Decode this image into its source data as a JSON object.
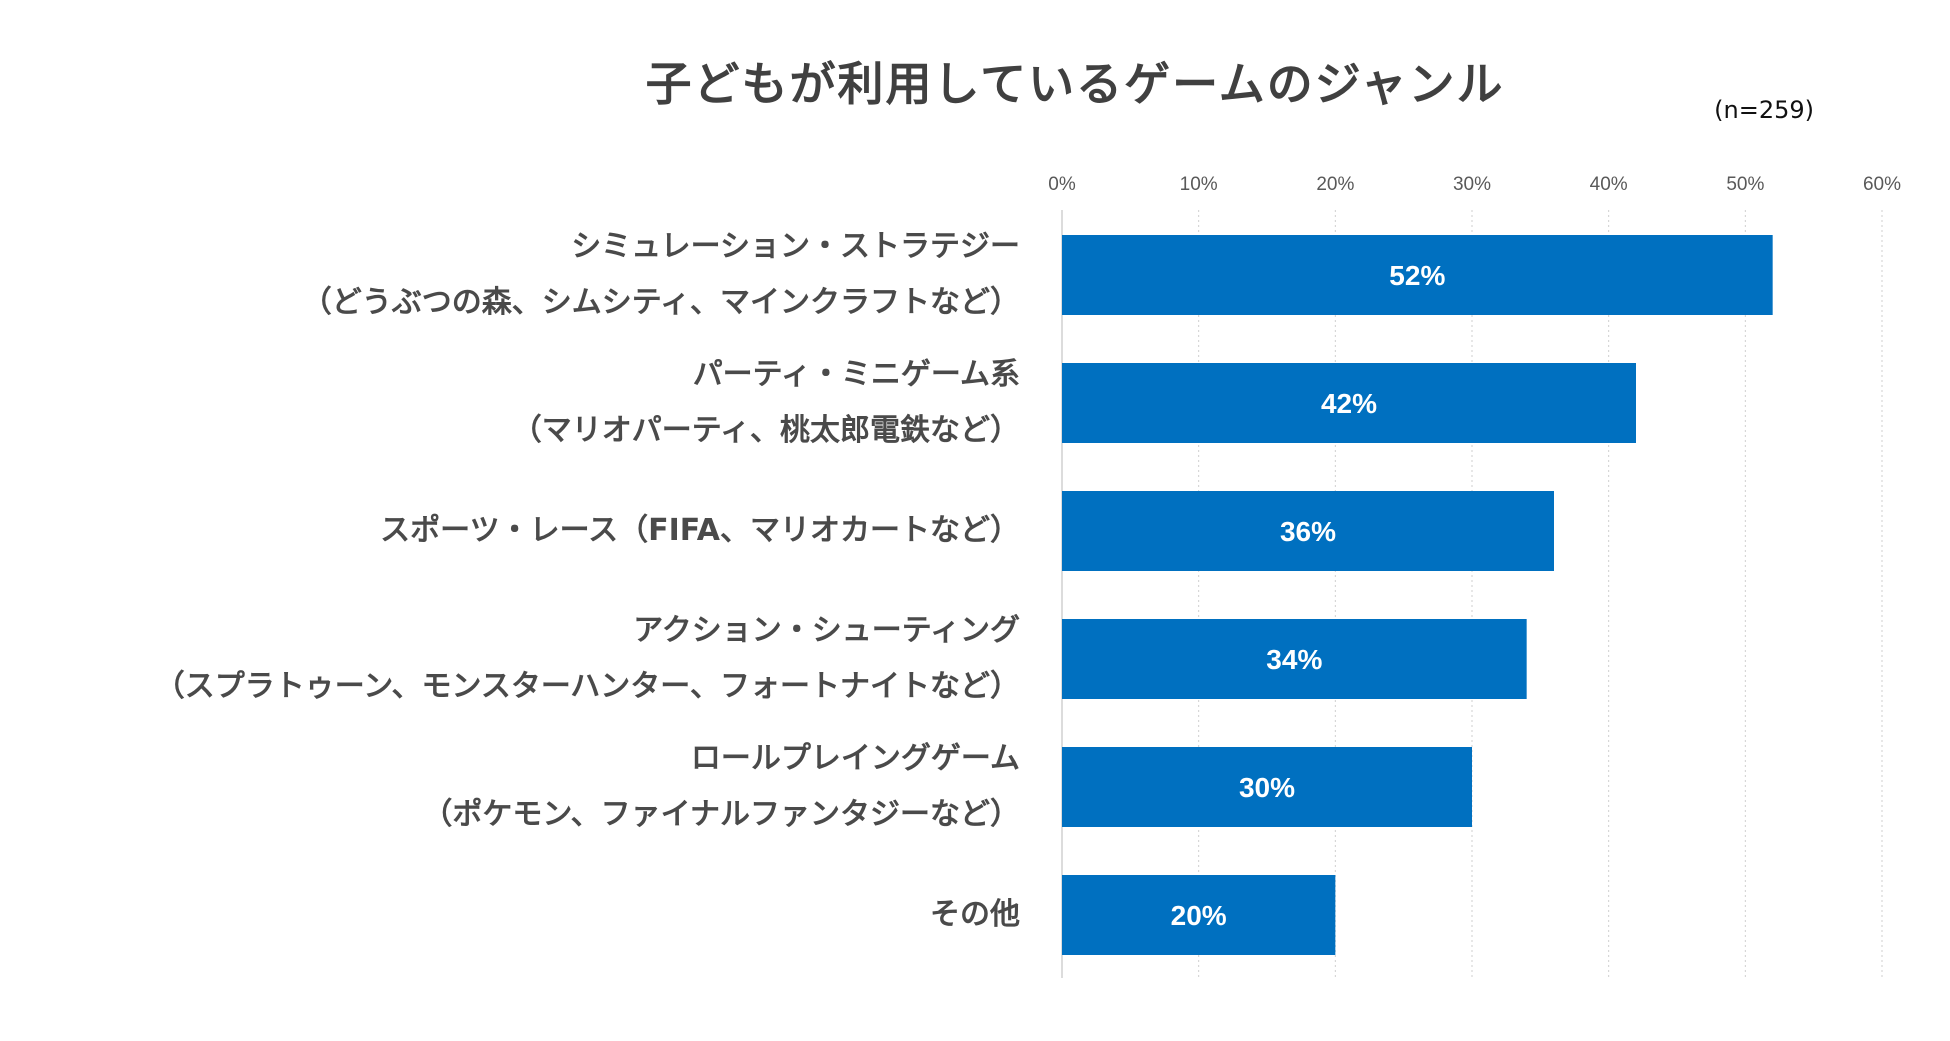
{
  "chart_data": {
    "type": "bar",
    "orientation": "horizontal",
    "title": "子どもが利用しているゲームのジャンル",
    "sample_note": "(n=259)",
    "categories": [
      [
        "シミュレーション・ストラテジー",
        "（どうぶつの森、シムシティ、マインクラフトなど）"
      ],
      [
        "パーティ・ミニゲーム系",
        "（マリオパーティ、桃太郎電鉄など）"
      ],
      [
        "スポーツ・レース（FIFA、マリオカートなど）"
      ],
      [
        "アクション・シューティング",
        "（スプラトゥーン、モンスターハンター、フォートナイトなど）"
      ],
      [
        "ロールプレイングゲーム",
        "（ポケモン、ファイナルファンタジーなど）"
      ],
      [
        "その他"
      ]
    ],
    "values": [
      52,
      42,
      36,
      34,
      30,
      20
    ],
    "data_labels": [
      "52%",
      "42%",
      "36%",
      "34%",
      "30%",
      "20%"
    ],
    "xlim": [
      0,
      60
    ],
    "xticks": [
      "0%",
      "10%",
      "20%",
      "30%",
      "40%",
      "50%",
      "60%"
    ],
    "grid": true,
    "bar_color": "#0070C0",
    "label_color": "#ffffff"
  }
}
